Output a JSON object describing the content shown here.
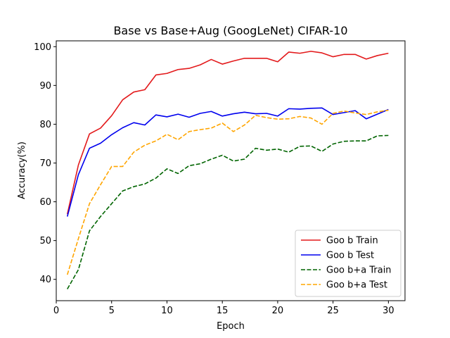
{
  "chart_data": {
    "type": "line",
    "title": "Base vs Base+Aug (GoogLeNet) CIFAR-10",
    "xlabel": "Epoch",
    "ylabel": "Accuracy(%)",
    "xlim": [
      0,
      31.5
    ],
    "ylim": [
      34.5,
      101.5
    ],
    "xticks": [
      0,
      5,
      10,
      15,
      20,
      25,
      30
    ],
    "yticks": [
      40,
      50,
      60,
      70,
      80,
      90,
      100
    ],
    "grid": false,
    "legend_position": "lower-right",
    "x": [
      1,
      2,
      3,
      4,
      5,
      6,
      7,
      8,
      9,
      10,
      11,
      12,
      13,
      14,
      15,
      16,
      17,
      18,
      19,
      20,
      21,
      22,
      23,
      24,
      25,
      26,
      27,
      28,
      29,
      30
    ],
    "series": [
      {
        "name": "Goo b Train",
        "color": "#e31a1c",
        "style": "solid",
        "values": [
          56.8,
          69.5,
          77.5,
          79.0,
          82.2,
          86.3,
          88.3,
          88.9,
          92.7,
          93.1,
          94.1,
          94.4,
          95.3,
          96.7,
          95.5,
          96.3,
          97.0,
          97.0,
          97.0,
          96.1,
          98.6,
          98.3,
          98.8,
          98.4,
          97.4,
          98.0,
          98.0,
          96.8,
          97.7,
          98.3
        ]
      },
      {
        "name": "Goo b Test",
        "color": "#0000ee",
        "style": "solid",
        "values": [
          56.2,
          67.0,
          73.8,
          75.1,
          77.3,
          79.1,
          80.4,
          79.8,
          82.4,
          81.9,
          82.6,
          81.8,
          82.8,
          83.3,
          82.1,
          82.7,
          83.1,
          82.7,
          82.8,
          82.1,
          84.0,
          83.9,
          84.1,
          84.2,
          82.5,
          83.0,
          83.5,
          81.4,
          82.6,
          83.8
        ]
      },
      {
        "name": "Goo b+a Train",
        "color": "#006400",
        "style": "dashed",
        "values": [
          37.5,
          42.5,
          52.5,
          56.2,
          59.5,
          62.8,
          63.9,
          64.6,
          66.1,
          68.5,
          67.3,
          69.3,
          69.8,
          71.0,
          72.0,
          70.5,
          71.0,
          73.8,
          73.3,
          73.6,
          72.8,
          74.3,
          74.4,
          73.0,
          74.9,
          75.6,
          75.7,
          75.7,
          77.0,
          77.1
        ]
      },
      {
        "name": "Goo b+a Test",
        "color": "#ffa500",
        "style": "dashed",
        "values": [
          41.2,
          50.5,
          59.5,
          64.4,
          69.1,
          69.1,
          72.8,
          74.6,
          75.7,
          77.4,
          76.0,
          78.1,
          78.6,
          79.0,
          80.3,
          78.1,
          79.8,
          82.3,
          81.7,
          81.3,
          81.4,
          82.0,
          81.6,
          80.0,
          82.8,
          83.4,
          82.9,
          82.5,
          83.2,
          83.6
        ]
      }
    ]
  }
}
